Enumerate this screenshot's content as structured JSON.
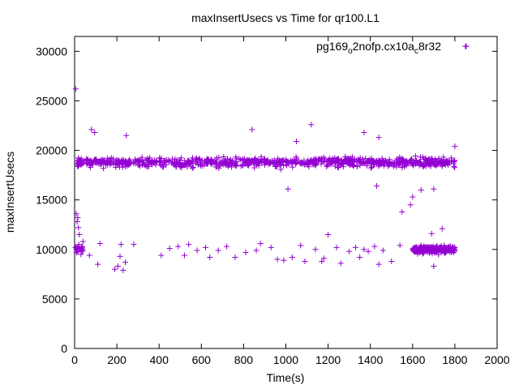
{
  "chart_data": {
    "type": "scatter",
    "title": "maxInsertUsecs vs Time for qr100.L1",
    "xlabel": "Time(s)",
    "ylabel": "maxInsertUsecs",
    "xlim": [
      0,
      2000
    ],
    "ylim": [
      0,
      31500
    ],
    "xticks": [
      "0",
      "200",
      "400",
      "600",
      "800",
      "1000",
      "1200",
      "1400",
      "1600",
      "1800",
      "2000"
    ],
    "yticks": [
      "0",
      "5000",
      "10000",
      "15000",
      "20000",
      "25000",
      "30000"
    ],
    "grid": false,
    "legend_position": "top-right",
    "marker": "plus",
    "series": [
      {
        "name": "pg169_o2nofp.cx10a_c8r32",
        "legend_parts": [
          {
            "text": "pg169",
            "sub": false
          },
          {
            "text": "o",
            "sub": true
          },
          {
            "text": "2nofp.cx10a",
            "sub": false
          },
          {
            "text": "c",
            "sub": true
          },
          {
            "text": "8r32",
            "sub": false
          }
        ],
        "color": "#9400d3",
        "main_band": {
          "x_range": [
            10,
            1800
          ],
          "center": 18800,
          "spread": 1000,
          "count": 900
        },
        "lower_band_early": {
          "x_range": [
            0,
            40
          ],
          "center": 10000,
          "spread": 800,
          "count": 20
        },
        "lower_band_cluster": {
          "x_range": [
            1600,
            1800
          ],
          "center": 10000,
          "spread": 700,
          "count": 250
        },
        "points": [
          [
            5,
            26200
          ],
          [
            8,
            13600
          ],
          [
            12,
            12800
          ],
          [
            15,
            13200
          ],
          [
            18,
            12200
          ],
          [
            22,
            11500
          ],
          [
            5,
            10200
          ],
          [
            10,
            9800
          ],
          [
            20,
            10500
          ],
          [
            30,
            9500
          ],
          [
            35,
            10300
          ],
          [
            40,
            10800
          ],
          [
            80,
            22100
          ],
          [
            95,
            21800
          ],
          [
            245,
            21500
          ],
          [
            70,
            9400
          ],
          [
            110,
            8500
          ],
          [
            120,
            10600
          ],
          [
            190,
            8000
          ],
          [
            205,
            8300
          ],
          [
            215,
            9300
          ],
          [
            220,
            10500
          ],
          [
            230,
            7900
          ],
          [
            240,
            8700
          ],
          [
            280,
            10500
          ],
          [
            410,
            9400
          ],
          [
            450,
            10100
          ],
          [
            490,
            10300
          ],
          [
            520,
            9400
          ],
          [
            540,
            10500
          ],
          [
            580,
            9900
          ],
          [
            620,
            10200
          ],
          [
            640,
            9200
          ],
          [
            680,
            9900
          ],
          [
            720,
            10300
          ],
          [
            760,
            9200
          ],
          [
            810,
            9700
          ],
          [
            860,
            9900
          ],
          [
            880,
            10600
          ],
          [
            930,
            10200
          ],
          [
            960,
            9000
          ],
          [
            990,
            8900
          ],
          [
            1030,
            9200
          ],
          [
            1070,
            10400
          ],
          [
            1090,
            8800
          ],
          [
            1140,
            10000
          ],
          [
            1170,
            8800
          ],
          [
            1180,
            9100
          ],
          [
            1200,
            11500
          ],
          [
            1240,
            10200
          ],
          [
            1260,
            8600
          ],
          [
            1300,
            9800
          ],
          [
            1330,
            10200
          ],
          [
            1350,
            9200
          ],
          [
            1370,
            10000
          ],
          [
            1390,
            9800
          ],
          [
            1420,
            10300
          ],
          [
            1440,
            8500
          ],
          [
            1460,
            9900
          ],
          [
            1500,
            8800
          ],
          [
            1540,
            10400
          ],
          [
            1550,
            13800
          ],
          [
            1600,
            15300
          ],
          [
            1640,
            16000
          ],
          [
            1700,
            16100
          ],
          [
            1800,
            20400
          ],
          [
            1050,
            20900
          ],
          [
            1120,
            22600
          ],
          [
            840,
            22100
          ],
          [
            1370,
            21800
          ],
          [
            1440,
            21300
          ],
          [
            1010,
            16100
          ],
          [
            1430,
            16400
          ],
          [
            1590,
            14500
          ],
          [
            1690,
            11600
          ],
          [
            1740,
            12100
          ],
          [
            1700,
            8300
          ],
          [
            1850,
            30500
          ]
        ]
      }
    ]
  }
}
